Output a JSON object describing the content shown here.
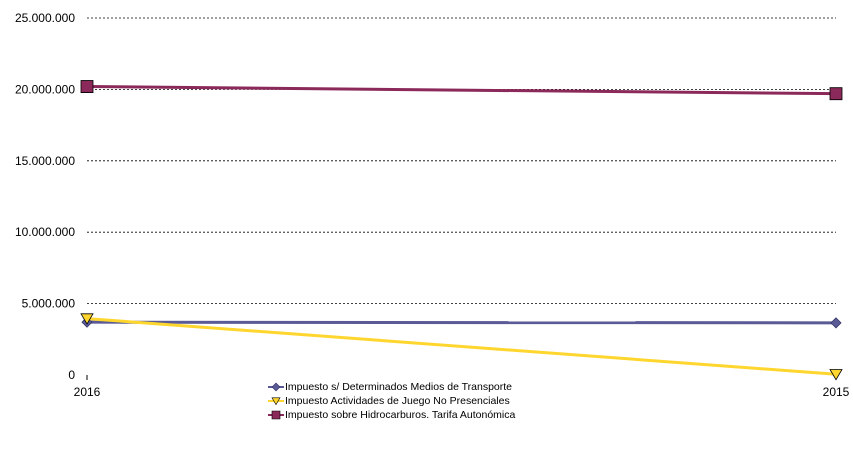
{
  "chart_data": {
    "type": "line",
    "categories": [
      "2016",
      "2015"
    ],
    "ylim": [
      0,
      25000000
    ],
    "yticks": [
      0,
      5000000,
      10000000,
      15000000,
      20000000,
      25000000
    ],
    "ytick_labels": [
      "0",
      "5.000.000",
      "10.000.000",
      "15.000.000",
      "20.000.000",
      "25.000.000"
    ],
    "grid": true,
    "legend_position": "bottom",
    "series": [
      {
        "name": "Impuesto s/ Determinados Medios de Transporte",
        "values": [
          3700000,
          3650000
        ],
        "color": "#5a5a96",
        "marker": "diamond"
      },
      {
        "name": "Impuesto Actividades de Juego No Presenciales",
        "values": [
          3950000,
          50000
        ],
        "color": "#ffd62e",
        "marker": "triangle-down"
      },
      {
        "name": "Impuesto sobre Hidrocarburos. Tarifa Autonómica",
        "values": [
          20200000,
          19700000
        ],
        "color": "#8b2a5a",
        "marker": "square"
      }
    ]
  }
}
